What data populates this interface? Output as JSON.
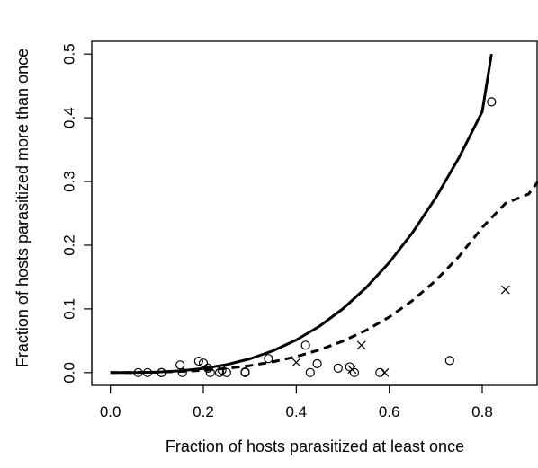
{
  "chart_data": {
    "type": "scatter",
    "xlabel": "Fraction of hosts parasitized at least once",
    "ylabel": "Fraction of hosts parasitized more than once",
    "xlim": [
      -0.04,
      0.92
    ],
    "ylim": [
      -0.02,
      0.52
    ],
    "x_ticks": [
      0.0,
      0.2,
      0.4,
      0.6,
      0.8
    ],
    "y_ticks": [
      0.0,
      0.1,
      0.2,
      0.3,
      0.4,
      0.5
    ],
    "x_tick_labels": [
      "0.0",
      "0.2",
      "0.4",
      "0.6",
      "0.8"
    ],
    "y_tick_labels": [
      "0.0",
      "0.1",
      "0.2",
      "0.3",
      "0.4",
      "0.5"
    ],
    "grid": false,
    "series": [
      {
        "marker": "circle",
        "x": [
          0.06,
          0.08,
          0.11,
          0.11,
          0.15,
          0.155,
          0.19,
          0.2,
          0.21,
          0.215,
          0.235,
          0.24,
          0.25,
          0.29,
          0.29,
          0.34,
          0.42,
          0.43,
          0.445,
          0.49,
          0.515,
          0.525,
          0.58,
          0.73,
          0.82
        ],
        "y": [
          0.0,
          0.0,
          0.0,
          0.0,
          0.012,
          0.0,
          0.018,
          0.015,
          0.007,
          0.0,
          0.0,
          0.004,
          0.0,
          0.0,
          0.001,
          0.022,
          0.043,
          0.0,
          0.014,
          0.007,
          0.009,
          0.0,
          0.0,
          0.019,
          0.425
        ]
      },
      {
        "marker": "x",
        "x": [
          0.4,
          0.52,
          0.54,
          0.59,
          0.85
        ],
        "y": [
          0.016,
          0.005,
          0.043,
          0.0,
          0.13
        ]
      },
      {
        "line": "solid",
        "x": [
          0.0,
          0.05,
          0.1,
          0.15,
          0.2,
          0.25,
          0.3,
          0.35,
          0.4,
          0.45,
          0.5,
          0.55,
          0.6,
          0.65,
          0.7,
          0.75,
          0.8,
          0.82
        ],
        "y": [
          0.0,
          0.0001,
          0.0008,
          0.0027,
          0.0064,
          0.0125,
          0.0216,
          0.0343,
          0.0512,
          0.0729,
          0.1,
          0.1331,
          0.1728,
          0.2197,
          0.2744,
          0.3375,
          0.4096,
          0.5
        ]
      },
      {
        "line": "dashed",
        "x": [
          0.0,
          0.05,
          0.1,
          0.15,
          0.2,
          0.25,
          0.3,
          0.35,
          0.4,
          0.45,
          0.5,
          0.55,
          0.6,
          0.65,
          0.7,
          0.75,
          0.8,
          0.85,
          0.9,
          0.92
        ],
        "y": [
          0.0,
          0.0001,
          0.0006,
          0.0017,
          0.0036,
          0.0066,
          0.0109,
          0.017,
          0.0251,
          0.0357,
          0.0493,
          0.0663,
          0.0873,
          0.1131,
          0.1445,
          0.1824,
          0.2278,
          0.2657,
          0.2804,
          0.3
        ]
      }
    ]
  }
}
